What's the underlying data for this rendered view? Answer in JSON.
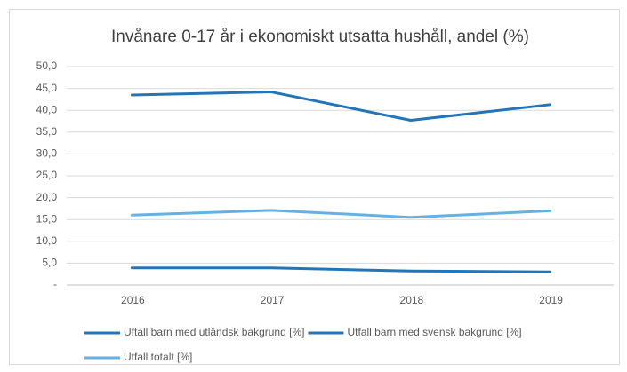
{
  "chart_data": {
    "type": "line",
    "title": "Invånare 0-17 år i ekonomiskt utsatta hushåll, andel (%)",
    "categories": [
      "2016",
      "2017",
      "2018",
      "2019"
    ],
    "series": [
      {
        "name": "Uftall barn med utländsk bakgrund [%]",
        "color": "#2475b8",
        "values": [
          43.5,
          44.2,
          37.7,
          41.3
        ]
      },
      {
        "name": "Utfall barn med svensk bakgrund [%]",
        "color": "#2475b8",
        "values": [
          3.9,
          3.9,
          3.2,
          3.0
        ]
      },
      {
        "name": "Utfall totalt [%]",
        "color": "#66b1e3",
        "values": [
          16.0,
          17.1,
          15.5,
          17.0
        ]
      }
    ],
    "ylim": [
      0,
      50
    ],
    "yticks": [
      {
        "value": 0,
        "label": "-"
      },
      {
        "value": 5,
        "label": "5,0"
      },
      {
        "value": 10,
        "label": "10,0"
      },
      {
        "value": 15,
        "label": "15,0"
      },
      {
        "value": 20,
        "label": "20,0"
      },
      {
        "value": 25,
        "label": "25,0"
      },
      {
        "value": 30,
        "label": "30,0"
      },
      {
        "value": 35,
        "label": "35,0"
      },
      {
        "value": 40,
        "label": "40,0"
      },
      {
        "value": 45,
        "label": "45,0"
      },
      {
        "value": 50,
        "label": "50,0"
      }
    ],
    "grid": true
  }
}
